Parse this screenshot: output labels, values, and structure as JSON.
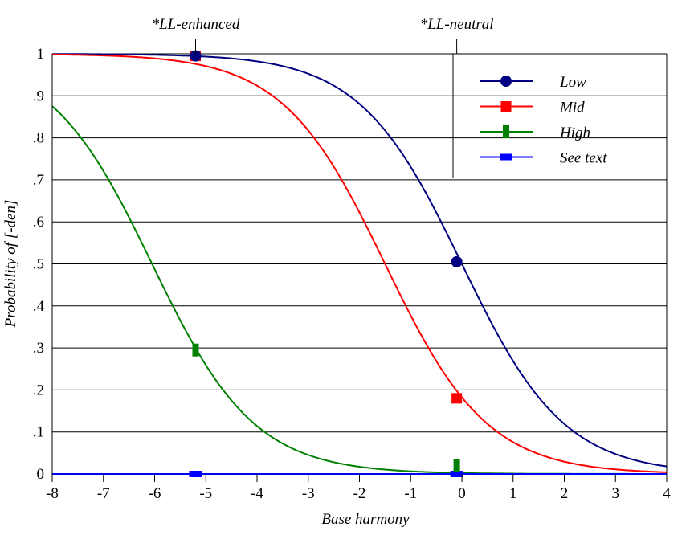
{
  "chart_data": {
    "type": "line",
    "title": "",
    "xlabel": "Base harmony",
    "ylabel": "Probability of [-den]",
    "xlim": [
      -8,
      4
    ],
    "ylim": [
      0,
      1
    ],
    "xticks": [
      -8,
      -7,
      -6,
      -5,
      -4,
      -3,
      -2,
      -1,
      0,
      1,
      2,
      3,
      4
    ],
    "xtick_labels": [
      "-8",
      "-7",
      "-6",
      "-5",
      "-4",
      "-3",
      "-2",
      "-1",
      "0",
      "1",
      "2",
      "3",
      "4"
    ],
    "yticks": [
      0,
      0.1,
      0.2,
      0.3,
      0.4,
      0.5,
      0.6,
      0.7,
      0.8,
      0.9,
      1
    ],
    "ytick_labels": [
      "0",
      ".1",
      ".2",
      ".3",
      ".4",
      ".5",
      ".6",
      ".7",
      ".8",
      ".9",
      "1"
    ],
    "grid": "horizontal",
    "legend_placement": "top-right",
    "annotations": [
      {
        "text": "*LL-enhanced",
        "x": -5.2
      },
      {
        "text": "*LL-neutral",
        "x": -0.1
      }
    ],
    "series": [
      {
        "name": "Low",
        "color": "#000080",
        "marker": "circle",
        "curve_midpoint": 0,
        "curve_slope": 1,
        "points": [
          {
            "x": -5.2,
            "y": 0.995
          },
          {
            "x": -0.1,
            "y": 0.505
          }
        ]
      },
      {
        "name": "Mid",
        "color": "#ff0000",
        "marker": "square",
        "curve_midpoint": -1.5,
        "curve_slope": 1,
        "points": [
          {
            "x": -5.2,
            "y": 0.995
          },
          {
            "x": -0.1,
            "y": 0.18
          }
        ]
      },
      {
        "name": "High",
        "color": "#008000",
        "marker": "tall-rect",
        "curve_midpoint": -6.05,
        "curve_slope": 1,
        "points": [
          {
            "x": -5.2,
            "y": 0.295
          },
          {
            "x": -0.1,
            "y": 0.02
          }
        ]
      },
      {
        "name": "See text",
        "color": "#0000ff",
        "marker": "wide-rect",
        "curve_constant": 0,
        "points": [
          {
            "x": -5.2,
            "y": 0
          },
          {
            "x": -0.1,
            "y": 0
          }
        ]
      }
    ]
  }
}
